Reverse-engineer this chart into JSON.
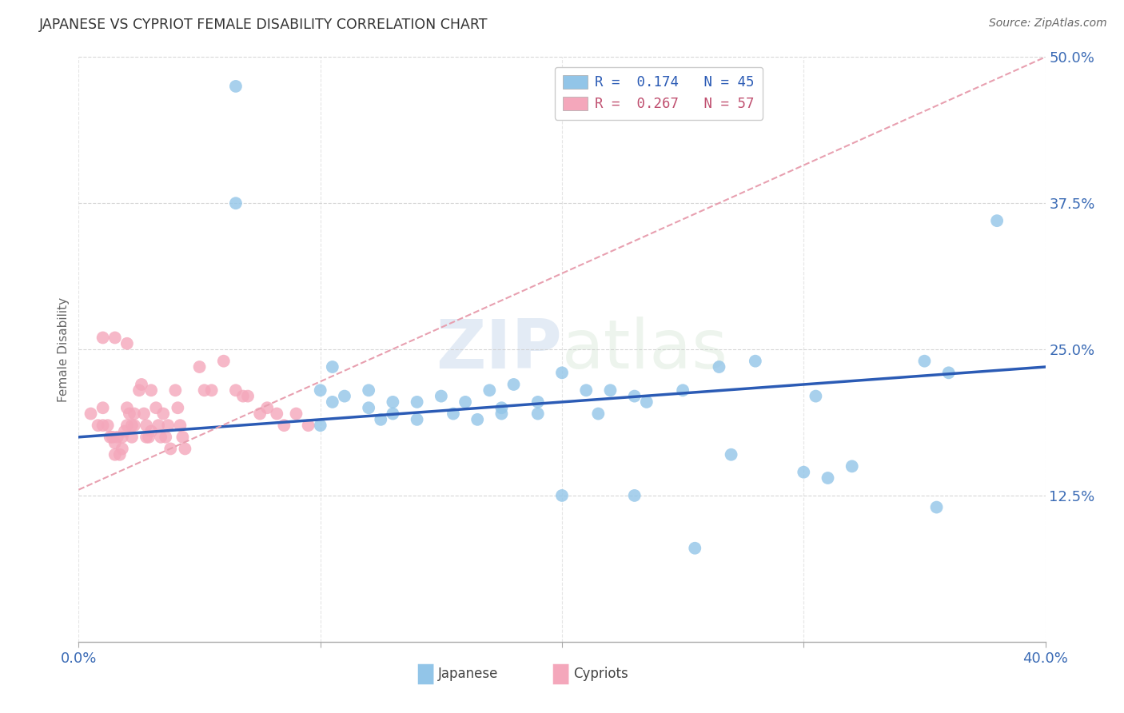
{
  "title": "JAPANESE VS CYPRIOT FEMALE DISABILITY CORRELATION CHART",
  "source": "Source: ZipAtlas.com",
  "ylabel": "Female Disability",
  "xlim": [
    0.0,
    0.4
  ],
  "ylim": [
    0.0,
    0.5
  ],
  "yticks": [
    0.125,
    0.25,
    0.375,
    0.5
  ],
  "ytick_labels": [
    "12.5%",
    "25.0%",
    "37.5%",
    "50.0%"
  ],
  "xticks": [
    0.0,
    0.4
  ],
  "xtick_labels": [
    "0.0%",
    "40.0%"
  ],
  "legend_line1": "R =  0.174   N = 45",
  "legend_line2": "R =  0.267   N = 57",
  "japanese_color": "#92C5E8",
  "cypriot_color": "#F4A7BB",
  "japanese_line_color": "#2B5BB5",
  "cypriot_line_color": "#E8A0B0",
  "background_color": "#FFFFFF",
  "grid_color": "#CCCCCC",
  "japanese_x": [
    0.065,
    0.065,
    0.1,
    0.1,
    0.105,
    0.105,
    0.11,
    0.12,
    0.12,
    0.125,
    0.13,
    0.13,
    0.14,
    0.14,
    0.15,
    0.155,
    0.16,
    0.165,
    0.17,
    0.175,
    0.175,
    0.18,
    0.19,
    0.19,
    0.2,
    0.21,
    0.215,
    0.22,
    0.23,
    0.235,
    0.25,
    0.265,
    0.27,
    0.28,
    0.3,
    0.305,
    0.31,
    0.32,
    0.35,
    0.36,
    0.38,
    0.2,
    0.23,
    0.355,
    0.255
  ],
  "japanese_y": [
    0.475,
    0.375,
    0.215,
    0.185,
    0.235,
    0.205,
    0.21,
    0.215,
    0.2,
    0.19,
    0.205,
    0.195,
    0.205,
    0.19,
    0.21,
    0.195,
    0.205,
    0.19,
    0.215,
    0.2,
    0.195,
    0.22,
    0.205,
    0.195,
    0.23,
    0.215,
    0.195,
    0.215,
    0.21,
    0.205,
    0.215,
    0.235,
    0.16,
    0.24,
    0.145,
    0.21,
    0.14,
    0.15,
    0.24,
    0.23,
    0.36,
    0.125,
    0.125,
    0.115,
    0.08
  ],
  "cypriot_x": [
    0.005,
    0.008,
    0.01,
    0.01,
    0.012,
    0.013,
    0.014,
    0.015,
    0.015,
    0.016,
    0.017,
    0.018,
    0.018,
    0.019,
    0.02,
    0.02,
    0.021,
    0.022,
    0.022,
    0.023,
    0.023,
    0.025,
    0.026,
    0.027,
    0.028,
    0.028,
    0.029,
    0.03,
    0.03,
    0.032,
    0.033,
    0.034,
    0.035,
    0.036,
    0.037,
    0.038,
    0.04,
    0.041,
    0.042,
    0.043,
    0.044,
    0.05,
    0.052,
    0.055,
    0.06,
    0.065,
    0.068,
    0.07,
    0.075,
    0.078,
    0.082,
    0.085,
    0.09,
    0.095,
    0.01,
    0.015,
    0.02
  ],
  "cypriot_y": [
    0.195,
    0.185,
    0.2,
    0.185,
    0.185,
    0.175,
    0.175,
    0.17,
    0.16,
    0.175,
    0.16,
    0.175,
    0.165,
    0.18,
    0.2,
    0.185,
    0.195,
    0.185,
    0.175,
    0.195,
    0.185,
    0.215,
    0.22,
    0.195,
    0.185,
    0.175,
    0.175,
    0.215,
    0.18,
    0.2,
    0.185,
    0.175,
    0.195,
    0.175,
    0.185,
    0.165,
    0.215,
    0.2,
    0.185,
    0.175,
    0.165,
    0.235,
    0.215,
    0.215,
    0.24,
    0.215,
    0.21,
    0.21,
    0.195,
    0.2,
    0.195,
    0.185,
    0.195,
    0.185,
    0.26,
    0.26,
    0.255
  ]
}
